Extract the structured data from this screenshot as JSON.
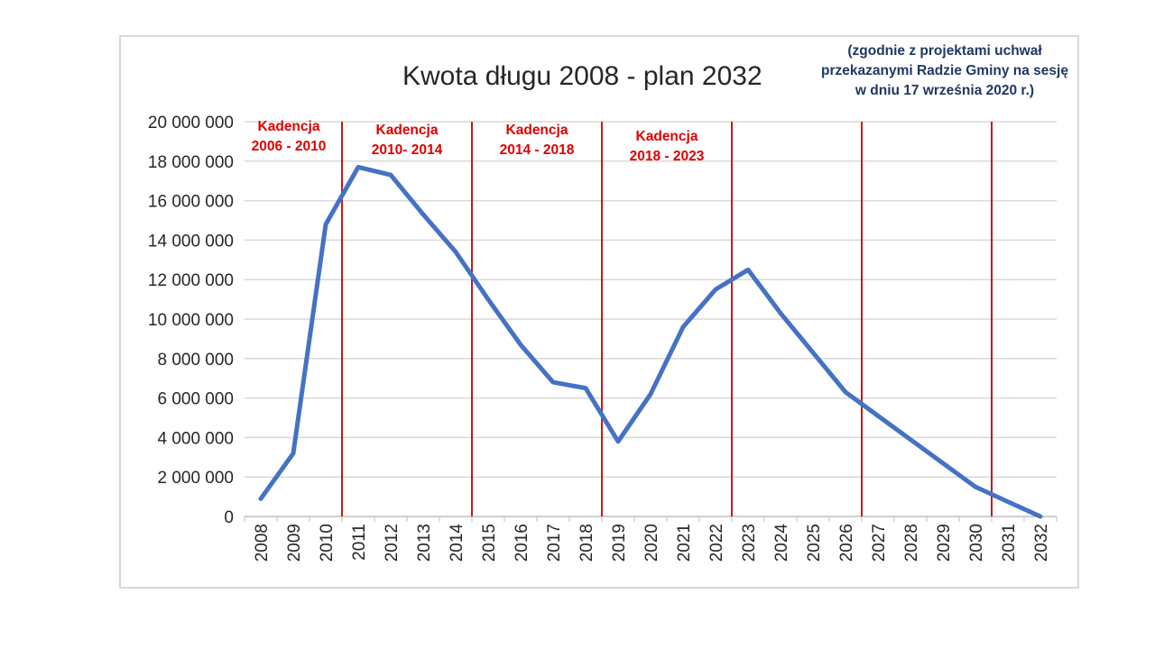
{
  "chart_data": {
    "type": "line",
    "title": "Kwota długu 2008 - plan 2032",
    "note": [
      "(zgodnie z projektami uchwał",
      "przekazanymi Radzie Gminy na sesję",
      "w dniu 17 września 2020 r.)"
    ],
    "x": [
      "2008",
      "2009",
      "2010",
      "2011",
      "2012",
      "2013",
      "2014",
      "2015",
      "2016",
      "2017",
      "2018",
      "2019",
      "2020",
      "2021",
      "2022",
      "2023",
      "2024",
      "2025",
      "2026",
      "2027",
      "2028",
      "2029",
      "2030",
      "2031",
      "2032"
    ],
    "series": [
      {
        "values": [
          900000,
          3200000,
          14800000,
          17700000,
          17300000,
          15300000,
          13400000,
          11000000,
          8700000,
          6800000,
          6500000,
          3800000,
          6200000,
          9600000,
          11500000,
          12500000,
          10300000,
          8300000,
          6300000,
          5100000,
          3900000,
          2700000,
          1500000,
          750000,
          0
        ],
        "color": "#4472c4"
      }
    ],
    "ylim": [
      0,
      20000000
    ],
    "yticks": [
      0,
      2000000,
      4000000,
      6000000,
      8000000,
      10000000,
      12000000,
      14000000,
      16000000,
      18000000,
      20000000
    ],
    "ytick_labels": [
      "0",
      "2 000 000",
      "4 000 000",
      "6 000 000",
      "8 000 000",
      "10 000 000",
      "12 000 000",
      "14 000 000",
      "16 000 000",
      "18 000 000",
      "20 000 000"
    ],
    "grid": true,
    "vlines": [
      {
        "after": "2010",
        "color": "#c00000"
      },
      {
        "after": "2014",
        "color": "#c00000"
      },
      {
        "after": "2018",
        "color": "#c00000"
      },
      {
        "after": "2022",
        "color": "#c00000"
      },
      {
        "after": "2026",
        "color": "#c00000"
      },
      {
        "after": "2030",
        "color": "#c00000"
      }
    ],
    "term_labels": [
      {
        "lines": [
          "Kadencja",
          "2006 - 2010"
        ],
        "term": "2006-2010"
      },
      {
        "lines": [
          "Kadencja",
          "2010- 2014"
        ],
        "term": "2010-2014"
      },
      {
        "lines": [
          "Kadencja",
          "2014 - 2018"
        ],
        "term": "2014-2018"
      },
      {
        "lines": [
          "Kadencja",
          "2018 - 2023"
        ],
        "term": "2018-2023"
      }
    ]
  }
}
